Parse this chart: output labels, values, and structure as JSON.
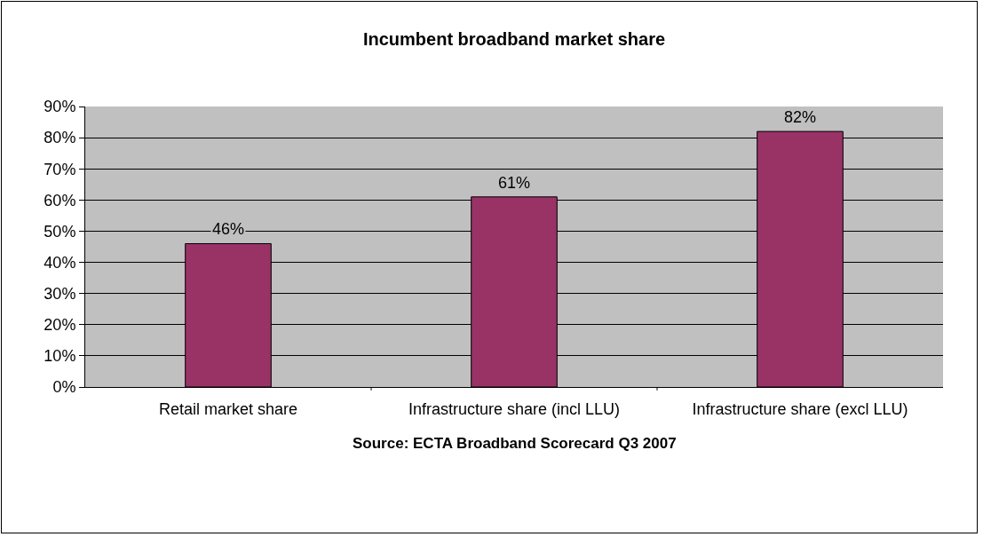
{
  "chart_data": {
    "type": "bar",
    "title": "Incumbent broadband market share",
    "categories": [
      "Retail market share",
      "Infrastructure share (incl LLU)",
      "Infrastructure share (excl LLU)"
    ],
    "values": [
      46,
      61,
      82
    ],
    "color": "#993366",
    "value_labels": [
      "46%",
      "61%",
      "82%"
    ],
    "ylim": [
      0,
      90
    ],
    "yticks": [
      {
        "value": 0,
        "label": "0%"
      },
      {
        "value": 10,
        "label": "10%"
      },
      {
        "value": 20,
        "label": "20%"
      },
      {
        "value": 30,
        "label": "30%"
      },
      {
        "value": 40,
        "label": "40%"
      },
      {
        "value": 50,
        "label": "50%"
      },
      {
        "value": 60,
        "label": "60%"
      },
      {
        "value": 70,
        "label": "70%"
      },
      {
        "value": 80,
        "label": "80%"
      },
      {
        "value": 90,
        "label": "90%"
      }
    ],
    "grid": "y",
    "legend": false,
    "annotations": [
      "Source: ECTA Broadband Scorecard Q3 2007"
    ]
  }
}
